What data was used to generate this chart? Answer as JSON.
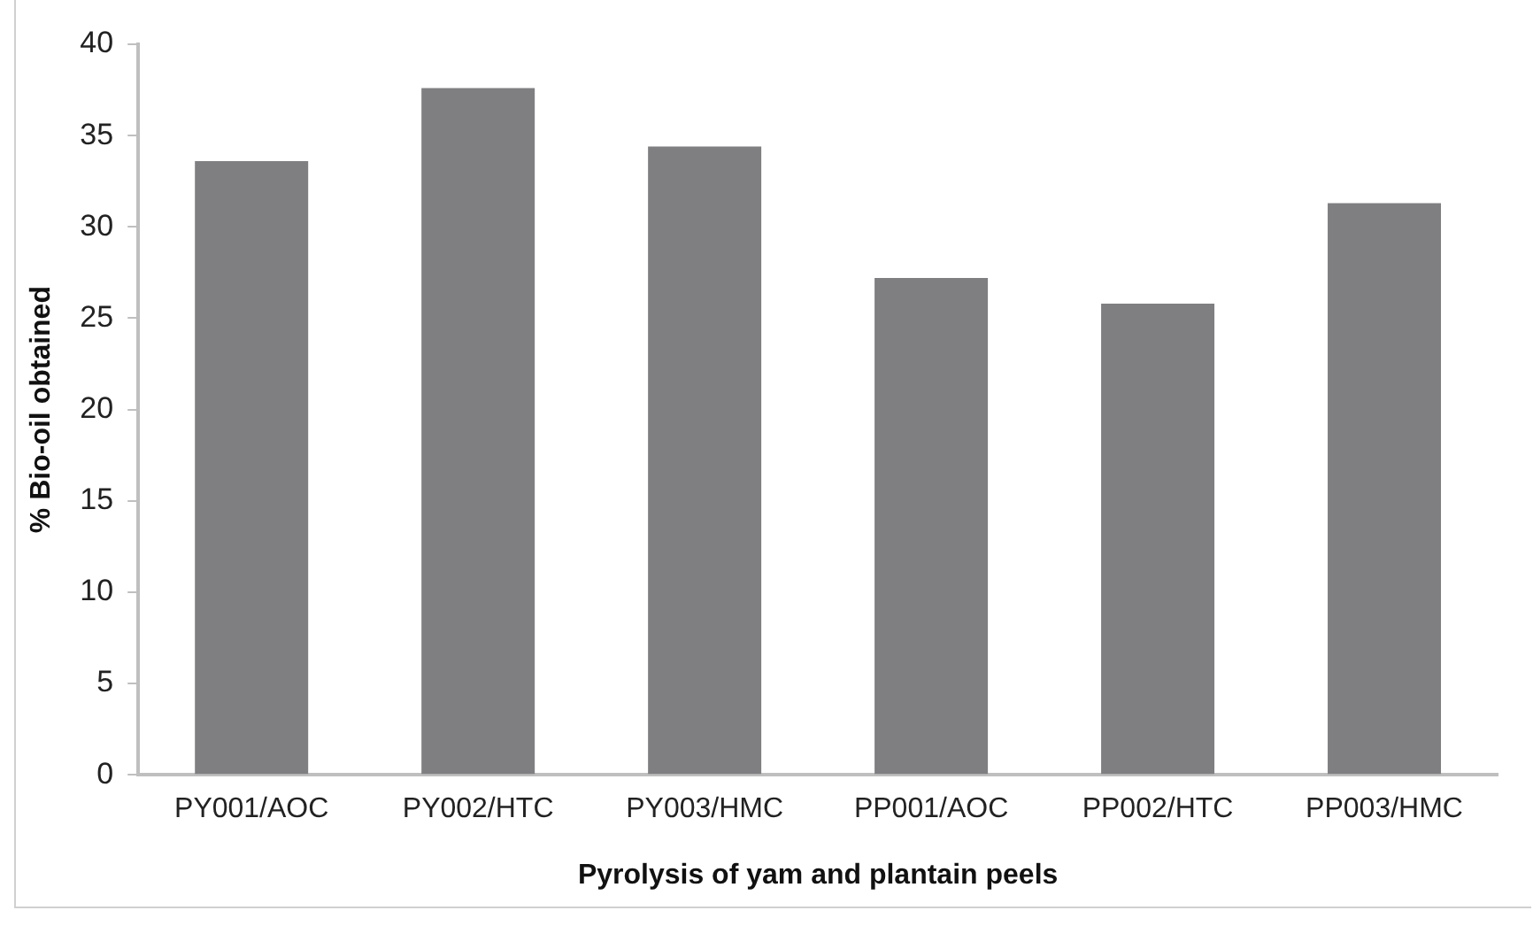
{
  "chart_data": {
    "type": "bar",
    "xlabel": "Pyrolysis of yam and plantain peels",
    "ylabel": "% Bio-oil obtained",
    "categories": [
      "PY001/AOC",
      "PY002/HTC",
      "PY003/HMC",
      "PP001/AOC",
      "PP002/HTC",
      "PP003/HMC"
    ],
    "values": [
      33.6,
      37.6,
      34.4,
      27.2,
      25.8,
      31.3
    ],
    "color": "#7f7f82",
    "ylim": [
      0,
      40
    ],
    "yticks": [
      0,
      5,
      10,
      15,
      20,
      25,
      30,
      35,
      40
    ],
    "grid": false,
    "legend": false
  }
}
